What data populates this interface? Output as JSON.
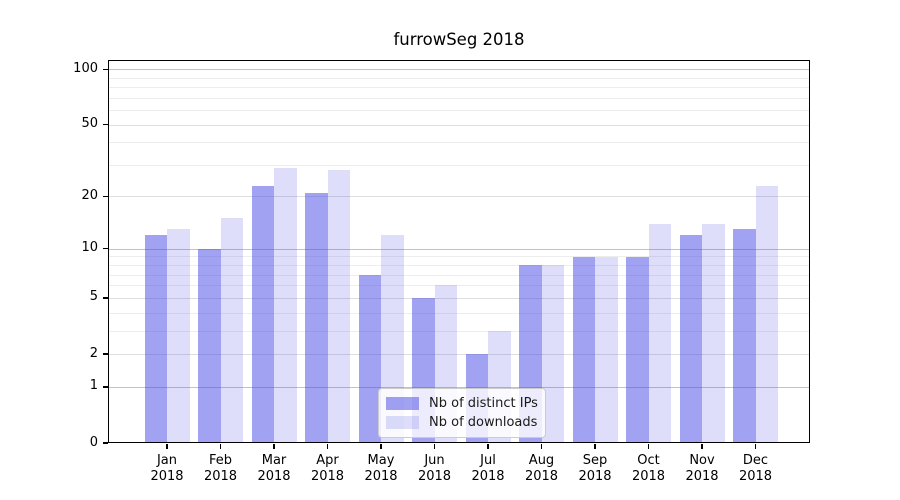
{
  "title": "furrowSeg 2018",
  "legend": {
    "items": [
      {
        "label": "Nb of distinct IPs",
        "color": "rgba(70,70,230,0.5)"
      },
      {
        "label": "Nb of downloads",
        "color": "rgba(70,70,230,0.18)"
      }
    ]
  },
  "y_axis": {
    "ticks": [
      {
        "value": 0,
        "label": "0",
        "weight": "none"
      },
      {
        "value": 1,
        "label": "1",
        "weight": "major"
      },
      {
        "value": 2,
        "label": "2",
        "weight": "mid"
      },
      {
        "value": 5,
        "label": "5",
        "weight": "mid"
      },
      {
        "value": 10,
        "label": "10",
        "weight": "major"
      },
      {
        "value": 20,
        "label": "20",
        "weight": "mid"
      },
      {
        "value": 50,
        "label": "50",
        "weight": "mid"
      },
      {
        "value": 100,
        "label": "100",
        "weight": "major"
      }
    ],
    "minor_ticks": [
      3,
      4,
      6,
      7,
      8,
      9,
      30,
      40,
      60,
      70,
      80,
      90
    ],
    "grid_colors": {
      "major": "#c2c2c2",
      "mid": "#dedede",
      "minor": "#ededed"
    }
  },
  "x_axis": {
    "categories": [
      {
        "line1": "Jan",
        "line2": "2018"
      },
      {
        "line1": "Feb",
        "line2": "2018"
      },
      {
        "line1": "Mar",
        "line2": "2018"
      },
      {
        "line1": "Apr",
        "line2": "2018"
      },
      {
        "line1": "May",
        "line2": "2018"
      },
      {
        "line1": "Jun",
        "line2": "2018"
      },
      {
        "line1": "Jul",
        "line2": "2018"
      },
      {
        "line1": "Aug",
        "line2": "2018"
      },
      {
        "line1": "Sep",
        "line2": "2018"
      },
      {
        "line1": "Oct",
        "line2": "2018"
      },
      {
        "line1": "Nov",
        "line2": "2018"
      },
      {
        "line1": "Dec",
        "line2": "2018"
      }
    ]
  },
  "chart_data": {
    "type": "bar",
    "title": "furrowSeg 2018",
    "categories": [
      "Jan 2018",
      "Feb 2018",
      "Mar 2018",
      "Apr 2018",
      "May 2018",
      "Jun 2018",
      "Jul 2018",
      "Aug 2018",
      "Sep 2018",
      "Oct 2018",
      "Nov 2018",
      "Dec 2018"
    ],
    "series": [
      {
        "name": "Nb of distinct IPs",
        "color": "rgba(70,70,230,0.5)",
        "values": [
          12,
          10,
          23,
          21,
          7,
          5,
          2,
          8,
          9,
          9,
          12,
          13
        ]
      },
      {
        "name": "Nb of downloads",
        "color": "rgba(70,70,230,0.18)",
        "values": [
          13,
          15,
          29,
          28,
          12,
          6,
          3,
          8,
          9,
          14,
          14,
          23
        ]
      }
    ],
    "xlabel": "",
    "ylabel": "",
    "y_scale": "symlog (position ~ ln(1+v))",
    "y_tick_values": [
      0,
      1,
      2,
      5,
      10,
      20,
      50,
      100
    ],
    "ylim": [
      0,
      117
    ],
    "grid": "on",
    "legend_position": "lower center, inside plot"
  }
}
